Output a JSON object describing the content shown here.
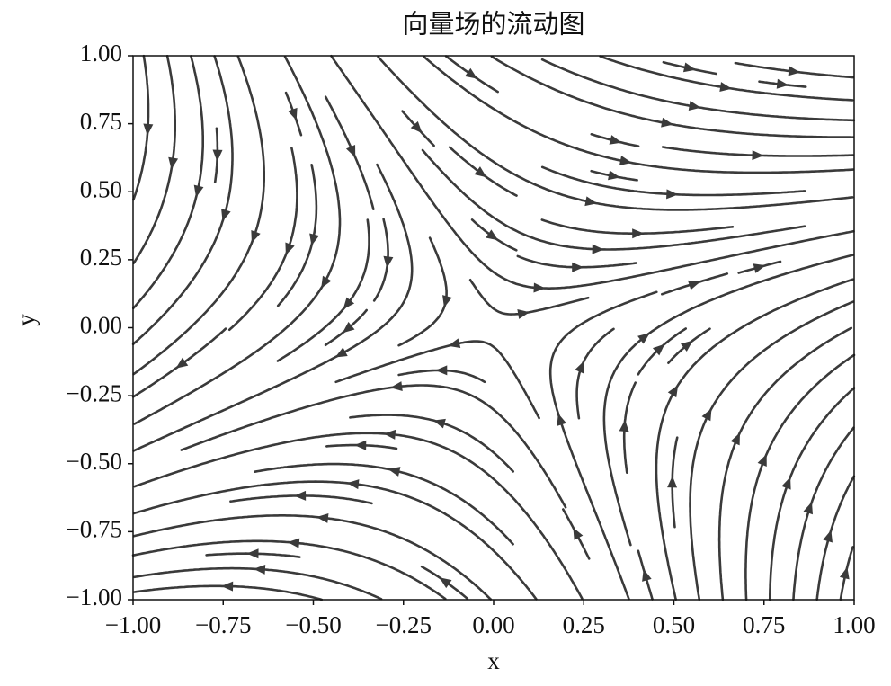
{
  "chart_data": {
    "type": "streamplot",
    "title": "向量场的流动图",
    "xlabel": "x",
    "ylabel": "y",
    "xlim": [
      -1,
      1
    ],
    "ylim": [
      -1,
      1
    ],
    "xticks": [
      {
        "value": -1,
        "label": "−1.00"
      },
      {
        "value": -0.75,
        "label": "−0.75"
      },
      {
        "value": -0.5,
        "label": "−0.50"
      },
      {
        "value": -0.25,
        "label": "−0.25"
      },
      {
        "value": 0,
        "label": "0.00"
      },
      {
        "value": 0.25,
        "label": "0.25"
      },
      {
        "value": 0.5,
        "label": "0.50"
      },
      {
        "value": 0.75,
        "label": "0.75"
      },
      {
        "value": 1,
        "label": "1.00"
      }
    ],
    "yticks": [
      {
        "value": -1,
        "label": "−1.00"
      },
      {
        "value": -0.75,
        "label": "−0.75"
      },
      {
        "value": -0.5,
        "label": "−0.50"
      },
      {
        "value": -0.25,
        "label": "−0.25"
      },
      {
        "value": 0,
        "label": "0.00"
      },
      {
        "value": 0.25,
        "label": "0.25"
      },
      {
        "value": 0.5,
        "label": "0.50"
      },
      {
        "value": 0.75,
        "label": "0.75"
      },
      {
        "value": 1,
        "label": "1.00"
      }
    ],
    "color": "#3a3a3a"
  }
}
